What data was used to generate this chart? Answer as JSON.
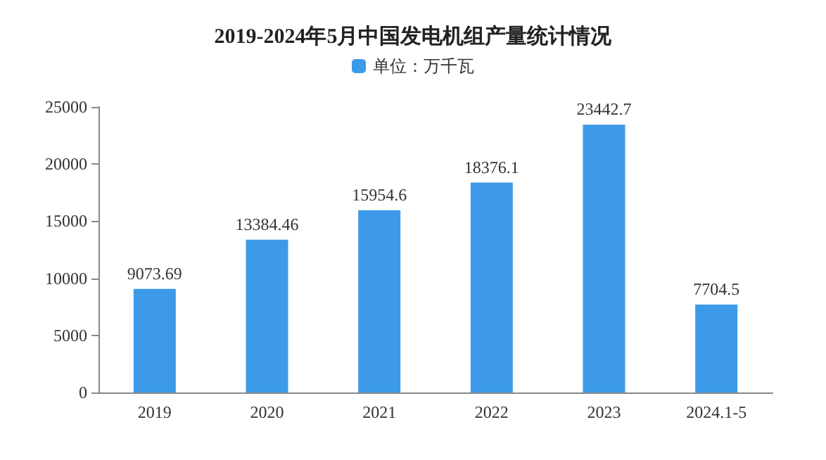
{
  "chart_data": {
    "type": "bar",
    "title": "2019-2024年5月中国发电机组产量统计情况",
    "categories": [
      "2019",
      "2020",
      "2021",
      "2022",
      "2023",
      "2024.1-5"
    ],
    "series": [
      {
        "name": "单位：万千瓦",
        "color": "#3c9ae8",
        "values": [
          9073.69,
          13384.46,
          15954.6,
          18376.1,
          23442.7,
          7704.5
        ]
      }
    ],
    "ylim": [
      0,
      25000
    ],
    "yticks": [
      0,
      5000,
      10000,
      15000,
      20000,
      25000
    ],
    "grid": false,
    "legend": "top",
    "data_labels": true
  }
}
